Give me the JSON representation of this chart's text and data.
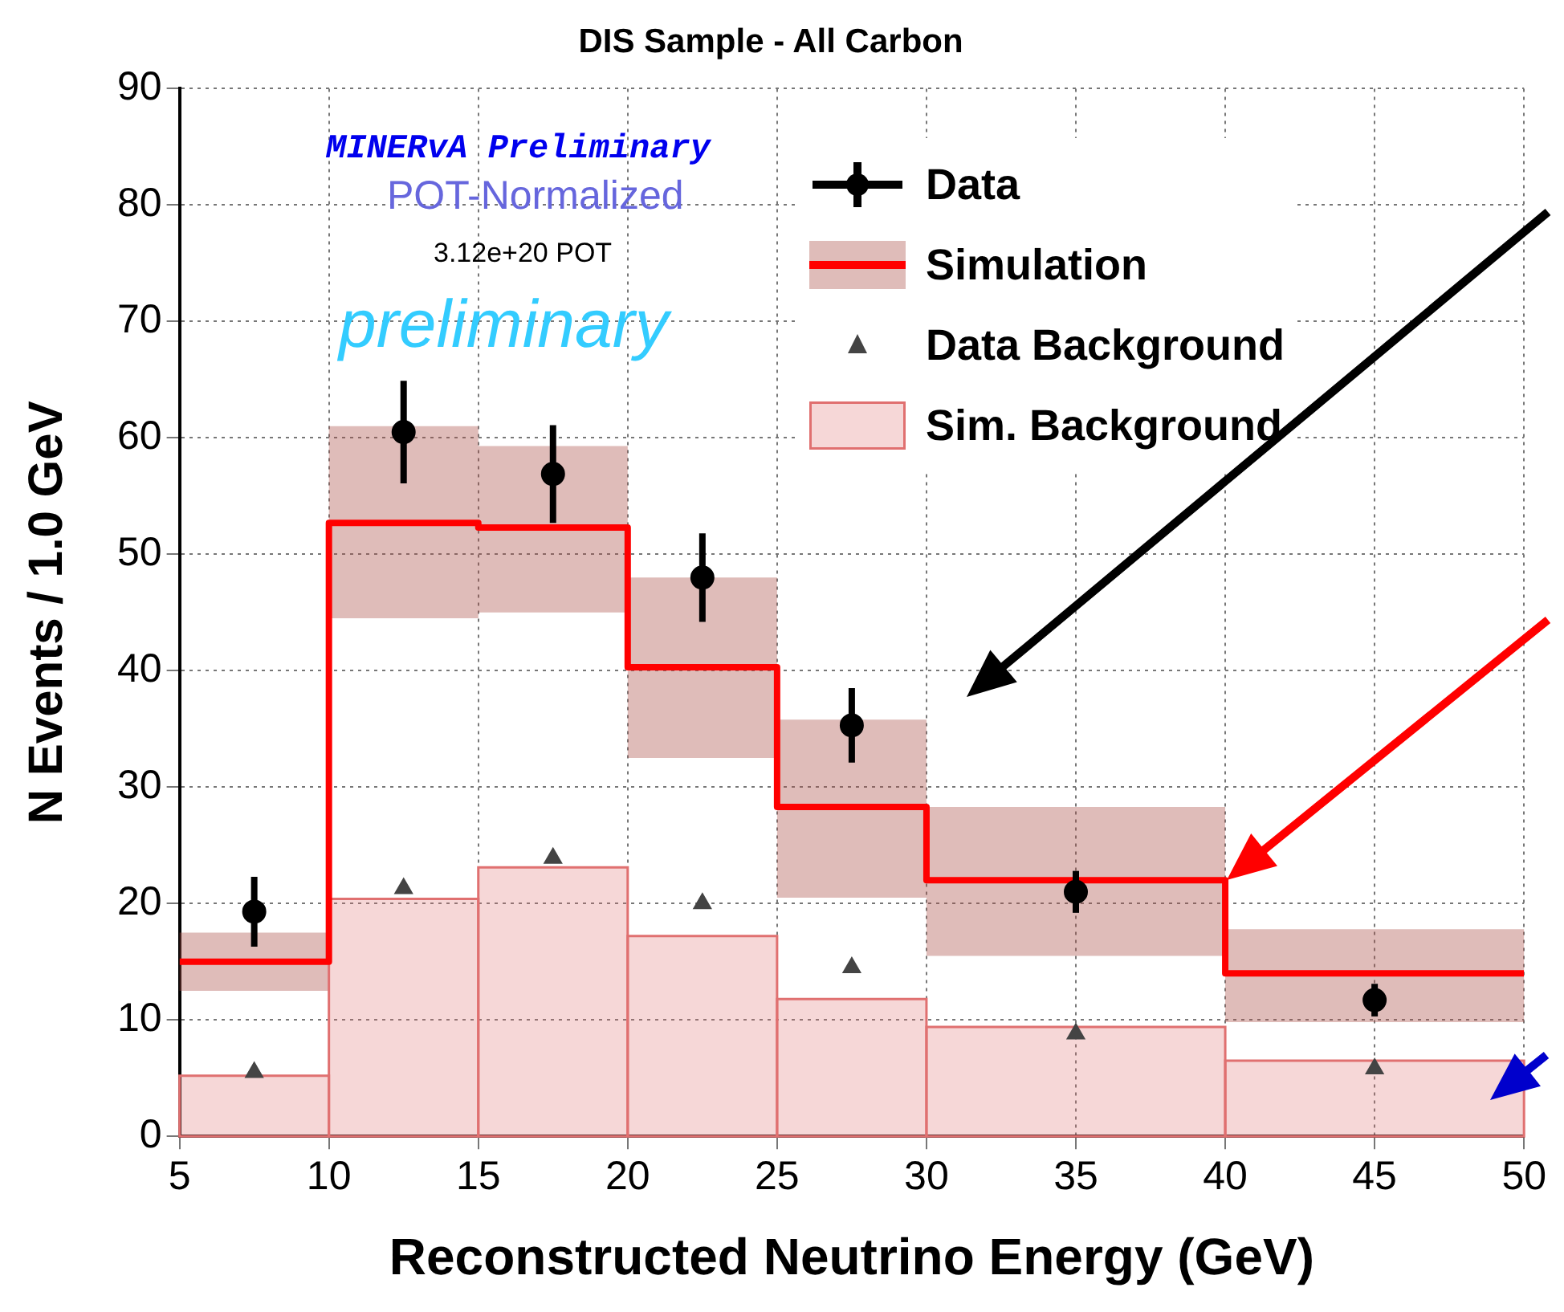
{
  "chart_data": {
    "type": "histogram",
    "title": "DIS Sample - All Carbon",
    "xlabel": "Reconstructed Neutrino Energy (GeV)",
    "ylabel": "N Events / 1.0 GeV",
    "bins": [
      5,
      10,
      15,
      20,
      25,
      30,
      40,
      50
    ],
    "xlim": [
      5,
      50
    ],
    "xticks": [
      5,
      10,
      15,
      20,
      25,
      30,
      35,
      40,
      45,
      50
    ],
    "ylim": [
      0,
      90
    ],
    "yticks": [
      0,
      10,
      20,
      30,
      40,
      50,
      60,
      70,
      80,
      90
    ],
    "grid": true,
    "legend": "top right",
    "annotations": [
      "MINERvA Preliminary",
      "POT-Normalized",
      "3.12e+20 POT",
      "preliminary"
    ],
    "series": [
      {
        "name": "Data",
        "type": "scatter",
        "marker": "circle",
        "color": "#000000",
        "x": [
          7.5,
          12.5,
          17.5,
          22.5,
          27.5,
          35,
          45
        ],
        "values": [
          19.3,
          60.5,
          56.9,
          48,
          35.3,
          21,
          11.7
        ],
        "errors": [
          3,
          4.4,
          4.2,
          3.8,
          3.2,
          1.8,
          1.4
        ]
      },
      {
        "name": "Simulation",
        "type": "step",
        "color": "#ff0000",
        "x": [
          5,
          10,
          15,
          20,
          25,
          30,
          40,
          50
        ],
        "values": [
          15,
          52.7,
          52.3,
          40.3,
          28.3,
          22,
          14,
          14
        ],
        "lower": [
          12.5,
          44.5,
          45,
          32.5,
          20.5,
          15.5,
          9.8,
          9.8
        ],
        "upper": [
          17.5,
          61,
          59.3,
          48,
          35.8,
          28.3,
          17.8,
          17.8
        ]
      },
      {
        "name": "Data Background",
        "type": "scatter",
        "marker": "triangle",
        "color": "#444444",
        "x": [
          7.5,
          12.5,
          17.5,
          22.5,
          27.5,
          35,
          45
        ],
        "values": [
          5.5,
          21.3,
          23.9,
          20,
          14.5,
          8.8,
          5.8
        ]
      },
      {
        "name": "Sim. Background",
        "color": "#e07070",
        "values": [
          5.2,
          20.4,
          23.1,
          17.2,
          11.8,
          9.4,
          6.5
        ]
      }
    ]
  }
}
